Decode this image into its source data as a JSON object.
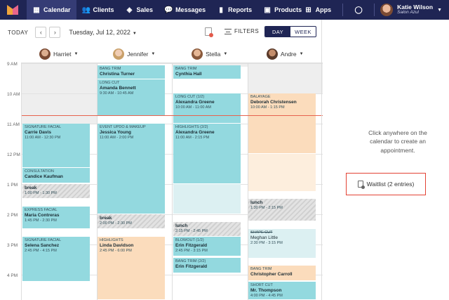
{
  "nav": {
    "items": [
      {
        "label": "Calendar",
        "icon": "calendar-icon",
        "glyph": "▦"
      },
      {
        "label": "Clients",
        "icon": "clients-icon",
        "glyph": "👥"
      },
      {
        "label": "Sales",
        "icon": "sales-icon",
        "glyph": "◈"
      },
      {
        "label": "Messages",
        "icon": "messages-icon",
        "glyph": "💬"
      },
      {
        "label": "Reports",
        "icon": "reports-icon",
        "glyph": "▮"
      },
      {
        "label": "Products",
        "icon": "products-icon",
        "glyph": "▣"
      }
    ],
    "apps_label": "Apps",
    "user_name": "Katie Wilson",
    "user_org": "Salon Azul"
  },
  "toolbar": {
    "today": "TODAY",
    "prev": "‹",
    "next": "›",
    "date": "Tuesday, Jul 12, 2022",
    "filters": "FILTERS",
    "day": "DAY",
    "week": "WEEK"
  },
  "staff": [
    {
      "name": "Harriet",
      "color": "#7a4a33"
    },
    {
      "name": "Jennifer",
      "color": "#c9a06a"
    },
    {
      "name": "Stella",
      "color": "#8a5a3c"
    },
    {
      "name": "Andre",
      "color": "#5a3a2a"
    }
  ],
  "times": [
    "9 AM",
    "10 AM",
    "11 AM",
    "12 PM",
    "1 PM",
    "2 PM",
    "3 PM",
    "4 PM"
  ],
  "appointments": {
    "harriet": [
      {
        "service": "SIGNATURE FACIAL",
        "client": "Carrie Davis",
        "time": "11:00 AM - 12:30 PM"
      },
      {
        "service": "CONSULTATION",
        "client": "Candice Kaufman",
        "time": ""
      },
      {
        "service": "",
        "client": "break",
        "time": "1:00 PM - 1:30 PM"
      },
      {
        "service": "EXPRESS FACIAL",
        "client": "Maria Contreras",
        "time": "1:45 PM - 2:30 PM"
      },
      {
        "service": "SIGNATURE FACIAL",
        "client": "Selena Sanchez",
        "time": "2:45 PM - 4:15 PM"
      }
    ],
    "jennifer": [
      {
        "service": "BANG TRIM",
        "client": "Christina Turner",
        "time": ""
      },
      {
        "service": "LONG CUT",
        "client": "Amanda Bennett",
        "time": "9:30 AM - 10:45 AM"
      },
      {
        "service": "EVENT UPDO & MAKEUP",
        "client": "Jessica Young",
        "time": "11:00 AM - 2:00 PM"
      },
      {
        "service": "",
        "client": "break",
        "time": "2:00 PM - 2:30 PM"
      },
      {
        "service": "HIGHLIGHTS",
        "client": "Linda Davidson",
        "time": "2:45 PM - 6:00 PM"
      }
    ],
    "stella": [
      {
        "service": "BANG TRIM",
        "client": "Cynthia Hall",
        "time": ""
      },
      {
        "service": "LONG CUT",
        "tag": "(1/2)",
        "client": "Alexandra Greene",
        "time": "10:00 AM - 11:00 AM"
      },
      {
        "service": "HIGHLIGHTS",
        "tag": "(2/2)",
        "client": "Alexandra Greene",
        "time": "11:00 AM - 2:15 PM"
      },
      {
        "service": "",
        "client": "lunch",
        "time": "2:15 PM - 2:45 PM"
      },
      {
        "service": "BLOWOUT",
        "tag": "(1/2)",
        "client": "Erin Fitzgerald",
        "time": "2:45 PM - 3:15 PM"
      },
      {
        "service": "BANG TRIM",
        "tag": "(2/2)",
        "client": "Erin Fitzgerald",
        "time": ""
      }
    ],
    "andre": [
      {
        "service": "BALAYAGE",
        "client": "Deborah Christensen",
        "time": "10:00 AM - 1:15 PM"
      },
      {
        "service": "",
        "client": "lunch",
        "time": "1:30 PM - 2:15 PM"
      },
      {
        "service": "SHAPE CUT",
        "client": "Meghan Little",
        "time": "2:30 PM - 3:15 PM"
      },
      {
        "service": "BANG TRIM",
        "client": "Christopher Carroll",
        "time": ""
      },
      {
        "service": "SHORT CUT",
        "client": "Mr. Thompson",
        "time": "4:00 PM - 4:45 PM"
      }
    ]
  },
  "side_panel": {
    "message": "Click anywhere on the calendar to create an appointment.",
    "waitlist": "Waitlist (2 entries)"
  }
}
